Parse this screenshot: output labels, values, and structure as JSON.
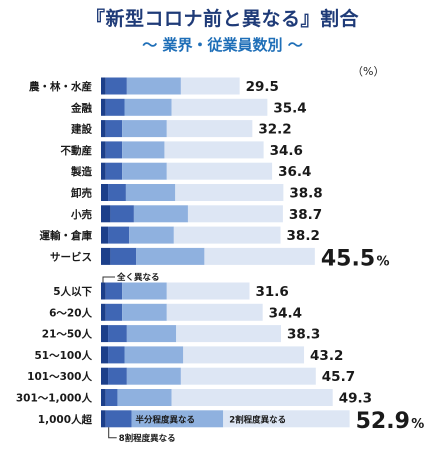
{
  "title": "『新型コロナ前と異なる』割合",
  "subtitle": "〜 業界・従業員数別 〜",
  "unit": "（%）",
  "chart_data": {
    "type": "bar",
    "stacked": true,
    "orientation": "horizontal",
    "groups": [
      {
        "categories": [
          "農・林・水産",
          "金融",
          "建設",
          "不動産",
          "製造",
          "卸売",
          "小売",
          "運輸・倉庫",
          "サービス"
        ],
        "totals": [
          "29.5",
          "35.4",
          "32.2",
          "34.6",
          "36.4",
          "38.8",
          "38.7",
          "38.2",
          "45.5"
        ],
        "segments": [
          [
            1.0,
            4.5,
            11.5,
            12.5
          ],
          [
            1.0,
            4.0,
            10.0,
            20.4
          ],
          [
            1.0,
            3.5,
            9.5,
            18.2
          ],
          [
            1.0,
            3.5,
            9.0,
            21.1
          ],
          [
            1.0,
            3.5,
            9.5,
            22.4
          ],
          [
            1.5,
            3.8,
            10.5,
            23.0
          ],
          [
            2.0,
            5.0,
            11.5,
            20.2
          ],
          [
            1.5,
            4.5,
            9.5,
            22.7
          ],
          [
            2.0,
            5.5,
            14.5,
            23.5
          ]
        ]
      },
      {
        "categories": [
          "5人以下",
          "6〜20人",
          "21〜50人",
          "51〜100人",
          "101〜300人",
          "301〜1,000人",
          "1,000人超"
        ],
        "totals": [
          "31.6",
          "34.4",
          "38.3",
          "43.2",
          "45.7",
          "49.3",
          "52.9"
        ],
        "segments": [
          [
            1.0,
            3.5,
            9.5,
            17.6
          ],
          [
            1.0,
            3.5,
            9.5,
            20.4
          ],
          [
            1.5,
            4.0,
            10.5,
            22.3
          ],
          [
            1.5,
            3.5,
            12.5,
            25.7
          ],
          [
            1.5,
            4.0,
            11.5,
            28.7
          ],
          [
            1.0,
            2.5,
            11.5,
            34.3
          ],
          [
            1.0,
            5.5,
            19.5,
            26.9
          ]
        ]
      }
    ],
    "highlight": [
      "サービス",
      "1,000人超"
    ],
    "annotations": {
      "all_different": "全く異なる",
      "half_different": "半分程度異なる",
      "twenty_different": "2割程度異なる",
      "eighty_different": "8割程度異なる"
    },
    "colors": [
      "#1c3f8a",
      "#3f66b4",
      "#8fb1df",
      "#dde6f4"
    ],
    "xlim": [
      0,
      60
    ]
  }
}
